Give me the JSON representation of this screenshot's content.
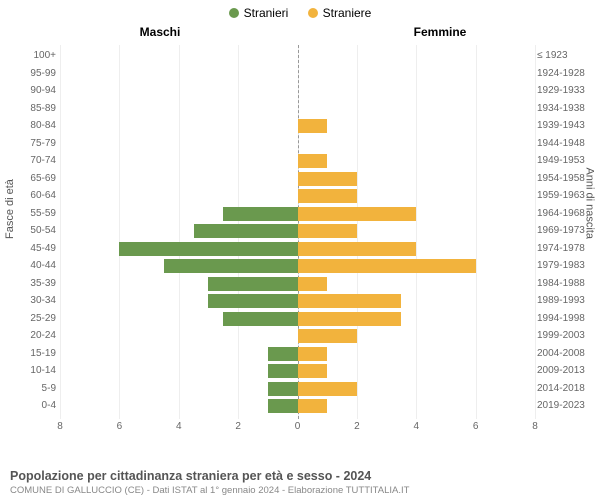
{
  "chart": {
    "type": "population-pyramid",
    "legend": [
      {
        "label": "Stranieri",
        "color": "#6a994e"
      },
      {
        "label": "Straniere",
        "color": "#f2b33d"
      }
    ],
    "left_col_title": "Maschi",
    "right_col_title": "Femmine",
    "y_left_axis_label": "Fasce di età",
    "y_right_axis_label": "Anni di nascita",
    "x_ticks": [
      8,
      6,
      4,
      2,
      0,
      2,
      4,
      6,
      8
    ],
    "x_max": 8,
    "bar_colors": {
      "male": "#6a994e",
      "female": "#f2b33d"
    },
    "background_color": "#ffffff",
    "grid_color": "#eeeeee",
    "zero_line_color": "#999999",
    "rows": [
      {
        "age": "100+",
        "birth": "≤ 1923",
        "m": 0,
        "f": 0
      },
      {
        "age": "95-99",
        "birth": "1924-1928",
        "m": 0,
        "f": 0
      },
      {
        "age": "90-94",
        "birth": "1929-1933",
        "m": 0,
        "f": 0
      },
      {
        "age": "85-89",
        "birth": "1934-1938",
        "m": 0,
        "f": 0
      },
      {
        "age": "80-84",
        "birth": "1939-1943",
        "m": 0,
        "f": 1
      },
      {
        "age": "75-79",
        "birth": "1944-1948",
        "m": 0,
        "f": 0
      },
      {
        "age": "70-74",
        "birth": "1949-1953",
        "m": 0,
        "f": 1
      },
      {
        "age": "65-69",
        "birth": "1954-1958",
        "m": 0,
        "f": 2
      },
      {
        "age": "60-64",
        "birth": "1959-1963",
        "m": 0,
        "f": 2
      },
      {
        "age": "55-59",
        "birth": "1964-1968",
        "m": 2.5,
        "f": 4
      },
      {
        "age": "50-54",
        "birth": "1969-1973",
        "m": 3.5,
        "f": 2
      },
      {
        "age": "45-49",
        "birth": "1974-1978",
        "m": 6,
        "f": 4
      },
      {
        "age": "40-44",
        "birth": "1979-1983",
        "m": 4.5,
        "f": 6
      },
      {
        "age": "35-39",
        "birth": "1984-1988",
        "m": 3,
        "f": 1
      },
      {
        "age": "30-34",
        "birth": "1989-1993",
        "m": 3,
        "f": 3.5
      },
      {
        "age": "25-29",
        "birth": "1994-1998",
        "m": 2.5,
        "f": 3.5
      },
      {
        "age": "20-24",
        "birth": "1999-2003",
        "m": 0,
        "f": 2
      },
      {
        "age": "15-19",
        "birth": "2004-2008",
        "m": 1,
        "f": 1
      },
      {
        "age": "10-14",
        "birth": "2009-2013",
        "m": 1,
        "f": 1
      },
      {
        "age": "5-9",
        "birth": "2014-2018",
        "m": 1,
        "f": 2
      },
      {
        "age": "0-4",
        "birth": "2019-2023",
        "m": 1,
        "f": 1
      }
    ]
  },
  "footer": {
    "title": "Popolazione per cittadinanza straniera per età e sesso - 2024",
    "subtitle": "COMUNE DI GALLUCCIO (CE) - Dati ISTAT al 1° gennaio 2024 - Elaborazione TUTTITALIA.IT"
  }
}
